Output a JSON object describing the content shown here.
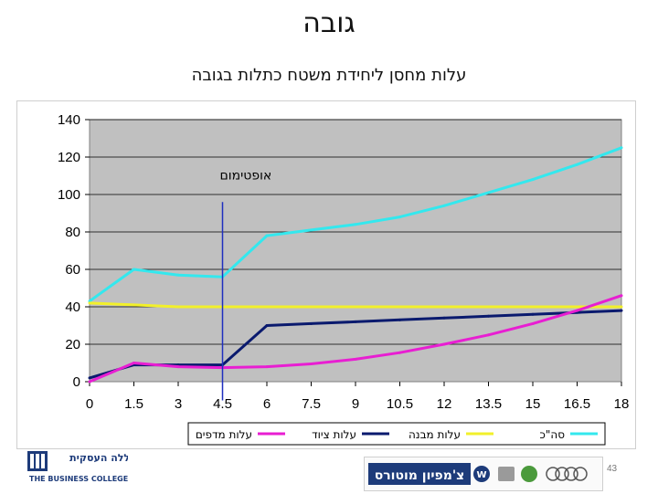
{
  "slide": {
    "title": "גובה",
    "number": "43"
  },
  "chart_data": {
    "type": "line",
    "title": "עלות מחסן ליחידת משטח כתלות בגובה",
    "x": [
      0,
      1.5,
      3,
      4.5,
      6,
      7.5,
      9,
      10.5,
      12,
      13.5,
      15,
      16.5,
      18
    ],
    "x_tick_labels": [
      "0",
      "1.5",
      "3",
      "4.5",
      "6",
      "7.5",
      "9",
      "10.5",
      "12",
      "13.5",
      "15",
      "16.5",
      "18"
    ],
    "ylim": [
      0,
      140
    ],
    "y_ticks": [
      0,
      20,
      40,
      60,
      80,
      100,
      120,
      140
    ],
    "grid": true,
    "plot_background": "#c0c0c0",
    "legend_placement": "bottom",
    "series": [
      {
        "name": "סה\"כ",
        "color": "#33e8ee",
        "values": [
          43,
          60,
          57,
          56,
          78,
          81,
          84,
          88,
          94,
          101,
          108,
          116,
          125
        ]
      },
      {
        "name": "עלות מבנה",
        "color": "#f2f02a",
        "values": [
          42,
          41,
          40,
          40,
          40,
          40,
          40,
          40,
          40,
          40,
          40,
          40,
          40
        ]
      },
      {
        "name": "עלות ציוד",
        "color": "#0a1a6e",
        "values": [
          2,
          9,
          9,
          9,
          30,
          31,
          32,
          33,
          34,
          35,
          36,
          37,
          38
        ]
      },
      {
        "name": "עלות מדפים",
        "color": "#e81ed2",
        "values": [
          0,
          10,
          8,
          7.5,
          8,
          9.5,
          12,
          15.5,
          20,
          25,
          31,
          38,
          46
        ]
      }
    ],
    "annotation": {
      "text": "אופטימום",
      "x": 4.5,
      "color": "#1f2fbf"
    }
  },
  "footer": {
    "college_name_hebrew": "המכללה העסקית",
    "college_name_english": "THE BUSINESS COLLEGE",
    "brand_text": "צ'מפיון מוטורס",
    "colors": {
      "college": "#1d3b7a",
      "brand": "#1d3b7a"
    },
    "logos": [
      "vw-logo",
      "seat-logo",
      "skoda-logo",
      "audi-logo"
    ]
  }
}
